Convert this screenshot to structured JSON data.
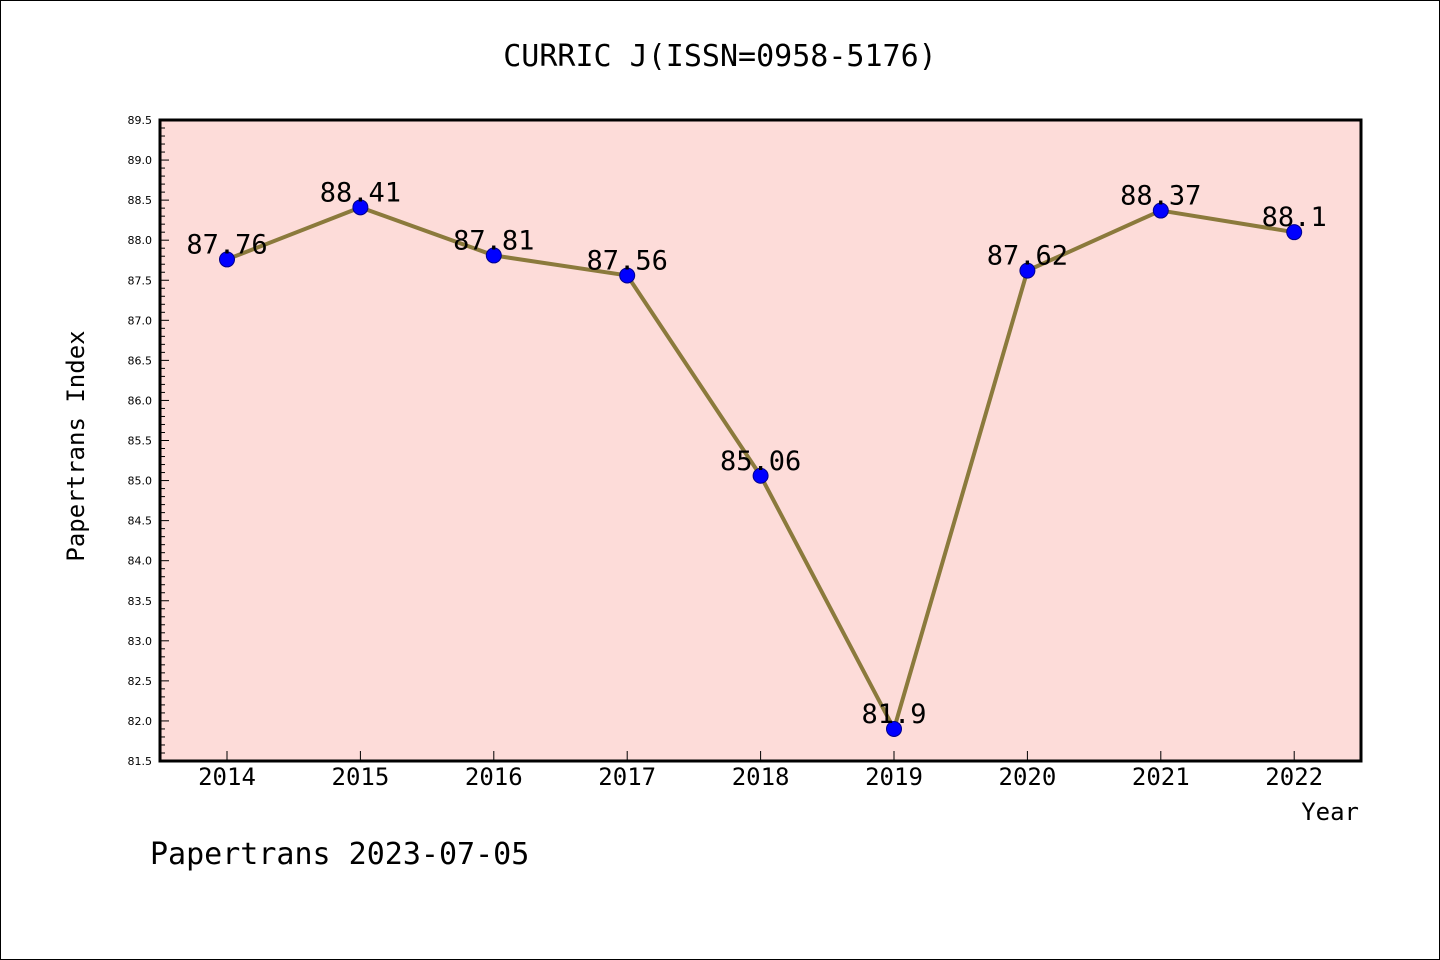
{
  "chart_data": {
    "type": "line",
    "title": "CURRIC J(ISSN=0958-5176)",
    "xlabel": "Year",
    "ylabel": "Papertrans Index",
    "categories": [
      "2014",
      "2015",
      "2016",
      "2017",
      "2018",
      "2019",
      "2020",
      "2021",
      "2022"
    ],
    "values": [
      87.76,
      88.41,
      87.81,
      87.56,
      85.06,
      81.9,
      87.62,
      88.37,
      88.1
    ],
    "data_labels": [
      "87.76",
      "88.41",
      "87.81",
      "87.56",
      "85.06",
      "81.9",
      "87.62",
      "88.37",
      "88.1"
    ],
    "ylim": [
      81.5,
      89.5
    ],
    "yticks": [
      "81.5",
      "82.0",
      "82.5",
      "83.0",
      "83.5",
      "84.0",
      "84.5",
      "85.0",
      "85.5",
      "86.0",
      "86.5",
      "87.0",
      "87.5",
      "88.0",
      "88.5",
      "89.0",
      "89.5"
    ],
    "grid": false,
    "legend": "none",
    "colors": {
      "plot_background": "#fddcd9",
      "line": "#8b7a3c",
      "marker": "#0000ff"
    }
  },
  "footer": "Papertrans 2023-07-05"
}
